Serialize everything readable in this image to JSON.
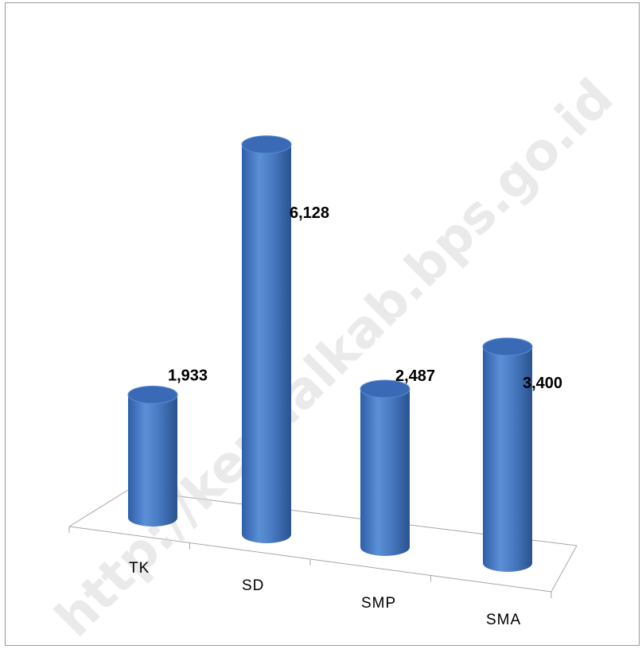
{
  "watermark_text": "http://kendalkab.bps.go.id",
  "chart_data": {
    "type": "bar",
    "style": "3d-cylinder",
    "categories": [
      "TK",
      "SD",
      "SMP",
      "SMA"
    ],
    "values": [
      1933,
      6128,
      2487,
      3400
    ],
    "value_labels": [
      "1,933",
      "6,128",
      "2,487",
      "3,400"
    ],
    "title": "",
    "xlabel": "",
    "ylabel": "",
    "ylim": [
      0,
      6500
    ],
    "grid": false,
    "legend": "none",
    "bar_color": "#4a7cc4",
    "bar_top_color": "#3a6ab5",
    "floor_line_color": "#a6a6a6"
  }
}
